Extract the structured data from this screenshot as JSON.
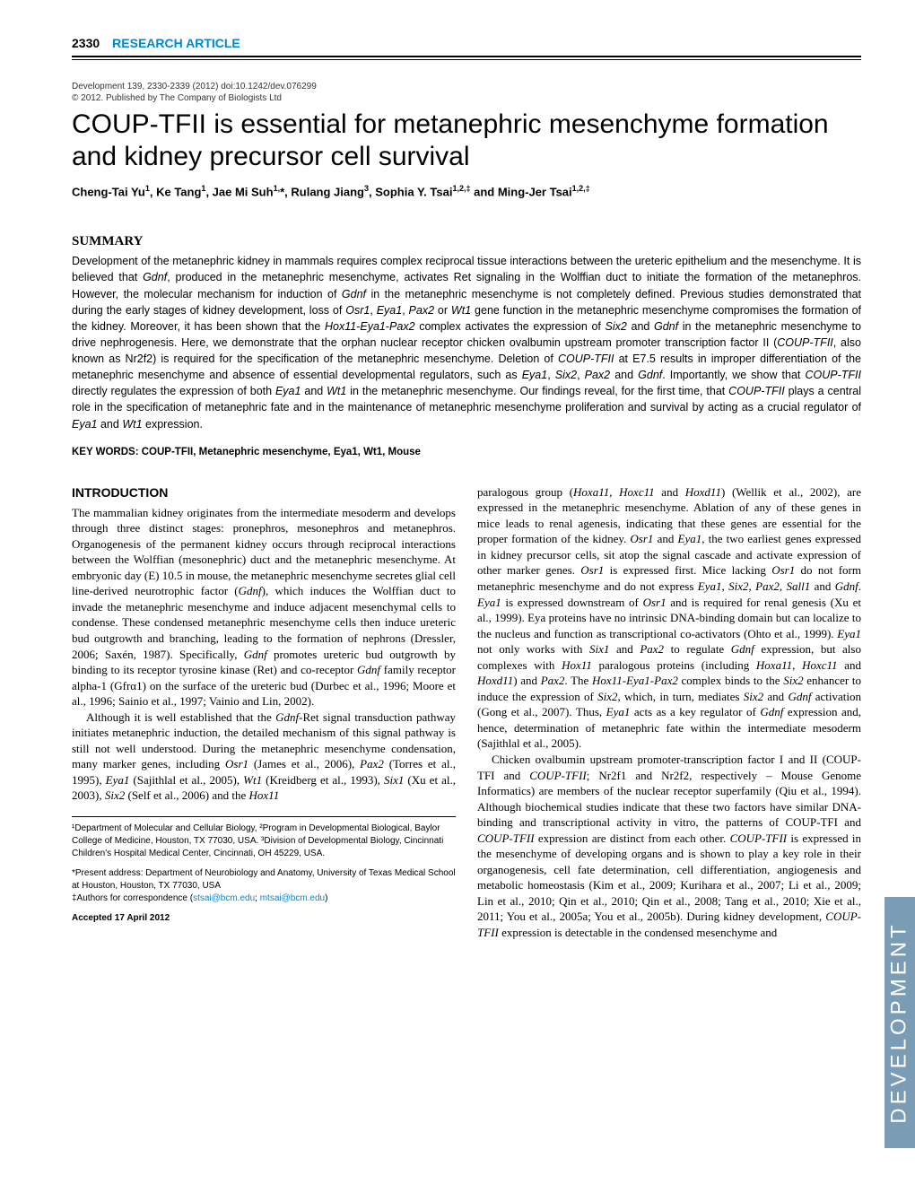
{
  "header": {
    "page_number": "2330",
    "section_label": "RESEARCH ARTICLE"
  },
  "citation": {
    "line1": "Development 139, 2330-2339 (2012) doi:10.1242/dev.076299",
    "line2": "© 2012. Published by The Company of Biologists Ltd"
  },
  "title": "COUP-TFII is essential for metanephric mesenchyme formation and kidney precursor cell survival",
  "authors_html": "Cheng-Tai Yu<sup>1</sup>, Ke Tang<sup>1</sup>, Jae Mi Suh<sup>1,</sup>*, Rulang Jiang<sup>3</sup>, Sophia Y. Tsai<sup>1,2,‡</sup> and Ming-Jer Tsai<sup>1,2,‡</sup>",
  "summary": {
    "heading": "SUMMARY",
    "text": "Development of the metanephric kidney in mammals requires complex reciprocal tissue interactions between the ureteric epithelium and the mesenchyme. It is believed that Gdnf, produced in the metanephric mesenchyme, activates Ret signaling in the Wolffian duct to initiate the formation of the metanephros. However, the molecular mechanism for induction of Gdnf in the metanephric mesenchyme is not completely defined. Previous studies demonstrated that during the early stages of kidney development, loss of Osr1, Eya1, Pax2 or Wt1 gene function in the metanephric mesenchyme compromises the formation of the kidney. Moreover, it has been shown that the Hox11-Eya1-Pax2 complex activates the expression of Six2 and Gdnf in the metanephric mesenchyme to drive nephrogenesis. Here, we demonstrate that the orphan nuclear receptor chicken ovalbumin upstream promoter transcription factor II (COUP-TFII, also known as Nr2f2) is required for the specification of the metanephric mesenchyme. Deletion of COUP-TFII at E7.5 results in improper differentiation of the metanephric mesenchyme and absence of essential developmental regulators, such as Eya1, Six2, Pax2 and Gdnf. Importantly, we show that COUP-TFII directly regulates the expression of both Eya1 and Wt1 in the metanephric mesenchyme. Our findings reveal, for the first time, that COUP-TFII plays a central role in the specification of metanephric fate and in the maintenance of metanephric mesenchyme proliferation and survival by acting as a crucial regulator of Eya1 and Wt1 expression."
  },
  "keywords": "KEY WORDS: COUP-TFII, Metanephric mesenchyme, Eya1, Wt1, Mouse",
  "introduction": {
    "heading": "INTRODUCTION",
    "left_p1": "The mammalian kidney originates from the intermediate mesoderm and develops through three distinct stages: pronephros, mesonephros and metanephros. Organogenesis of the permanent kidney occurs through reciprocal interactions between the Wolffian (mesonephric) duct and the metanephric mesenchyme. At embryonic day (E) 10.5 in mouse, the metanephric mesenchyme secretes glial cell line-derived neurotrophic factor (Gdnf), which induces the Wolffian duct to invade the metanephric mesenchyme and induce adjacent mesenchymal cells to condense. These condensed metanephric mesenchyme cells then induce ureteric bud outgrowth and branching, leading to the formation of nephrons (Dressler, 2006; Saxén, 1987). Specifically, Gdnf promotes ureteric bud outgrowth by binding to its receptor tyrosine kinase (Ret) and co-receptor Gdnf family receptor alpha-1 (Gfrα1) on the surface of the ureteric bud (Durbec et al., 1996; Moore et al., 1996; Sainio et al., 1997; Vainio and Lin, 2002).",
    "left_p2": "Although it is well established that the Gdnf-Ret signal transduction pathway initiates metanephric induction, the detailed mechanism of this signal pathway is still not well understood. During the metanephric mesenchyme condensation, many marker genes, including Osr1 (James et al., 2006), Pax2 (Torres et al., 1995), Eya1 (Sajithlal et al., 2005), Wt1 (Kreidberg et al., 1993), Six1 (Xu et al., 2003), Six2 (Self et al., 2006) and the Hox11",
    "right_p1": "paralogous group (Hoxa11, Hoxc11 and Hoxd11) (Wellik et al., 2002), are expressed in the metanephric mesenchyme. Ablation of any of these genes in mice leads to renal agenesis, indicating that these genes are essential for the proper formation of the kidney. Osr1 and Eya1, the two earliest genes expressed in kidney precursor cells, sit atop the signal cascade and activate expression of other marker genes. Osr1 is expressed first. Mice lacking Osr1 do not form metanephric mesenchyme and do not express Eya1, Six2, Pax2, Sall1 and Gdnf. Eya1 is expressed downstream of Osr1 and is required for renal genesis (Xu et al., 1999). Eya proteins have no intrinsic DNA-binding domain but can localize to the nucleus and function as transcriptional co-activators (Ohto et al., 1999). Eya1 not only works with Six1 and Pax2 to regulate Gdnf expression, but also complexes with Hox11 paralogous proteins (including Hoxa11, Hoxc11 and Hoxd11) and Pax2. The Hox11-Eya1-Pax2 complex binds to the Six2 enhancer to induce the expression of Six2, which, in turn, mediates Six2 and Gdnf activation (Gong et al., 2007). Thus, Eya1 acts as a key regulator of Gdnf expression and, hence, determination of metanephric fate within the intermediate mesoderm (Sajithlal et al., 2005).",
    "right_p2": "Chicken ovalbumin upstream promoter-transcription factor I and II (COUP-TFI and COUP-TFII; Nr2f1 and Nr2f2, respectively – Mouse Genome Informatics) are members of the nuclear receptor superfamily (Qiu et al., 1994). Although biochemical studies indicate that these two factors have similar DNA-binding and transcriptional activity in vitro, the patterns of COUP-TFI and COUP-TFII expression are distinct from each other. COUP-TFII is expressed in the mesenchyme of developing organs and is shown to play a key role in their organogenesis, cell fate determination, cell differentiation, angiogenesis and metabolic homeostasis (Kim et al., 2009; Kurihara et al., 2007; Li et al., 2009; Lin et al., 2010; Qin et al., 2010; Qin et al., 2008; Tang et al., 2010; Xie et al., 2011; You et al., 2005a; You et al., 2005b). During kidney development, COUP-TFII expression is detectable in the condensed mesenchyme and"
  },
  "footnotes": {
    "affil": "¹Department of Molecular and Cellular Biology, ²Program in Developmental Biological, Baylor College of Medicine, Houston, TX 77030, USA. ³Division of Developmental Biology, Cincinnati Children's Hospital Medical Center, Cincinnati, OH 45229, USA.",
    "present": "*Present address: Department of Neurobiology and Anatomy, University of Texas Medical School at Houston, Houston, TX 77030, USA",
    "corresp_prefix": "‡Authors for correspondence (",
    "email1": "stsai@bcm.edu",
    "sep": "; ",
    "email2": "mtsai@bcm.edu",
    "corresp_suffix": ")",
    "accepted": "Accepted 17 April 2012"
  },
  "side_tab": "DEVELOPMENT",
  "colors": {
    "accent_blue": "#0088cc",
    "tab_bg": "#7b9cb5",
    "tab_text": "#ffffff"
  }
}
